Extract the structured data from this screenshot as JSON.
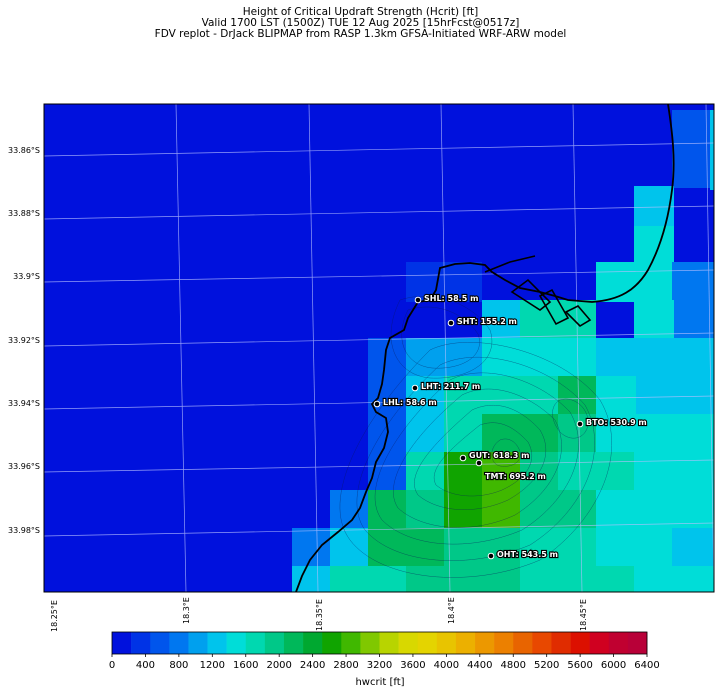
{
  "header": {
    "line1": "Height of Critical Updraft Strength (Hcrit) [ft]",
    "line2": "Valid 1700 LST (1500Z) TUE 12 Aug 2025 [15hrFcst@0517z]",
    "line3": "FDV replot - DrJack BLIPMAP from RASP 1.3km GFSA-Initiated WRF-ARW model"
  },
  "lat_labels": [
    "33.86°S",
    "33.88°S",
    "33.9°S",
    "33.92°S",
    "33.94°S",
    "33.96°S",
    "33.98°S"
  ],
  "lon_labels": [
    "18.25°E",
    "18.3°E",
    "18.35°E",
    "18.4°E",
    "18.45°E"
  ],
  "sites": [
    {
      "label": "SHL: 58.5 m"
    },
    {
      "label": "SHT: 155.2 m"
    },
    {
      "label": "LHT: 211.7 m"
    },
    {
      "label": "LHL: 58.6 m"
    },
    {
      "label": "BTO: 530.9 m"
    },
    {
      "label": "GUT: 618.3 m"
    },
    {
      "label": "TMT: 695.2 m"
    },
    {
      "label": "OHT: 543.5 m"
    }
  ],
  "colorbar": {
    "ticks": [
      "0",
      "400",
      "800",
      "1200",
      "1600",
      "2000",
      "2400",
      "2800",
      "3200",
      "3600",
      "4000",
      "4400",
      "4800",
      "5200",
      "5600",
      "6000",
      "6400"
    ],
    "label": "hwcrit [ft]",
    "colors": [
      "#0011dd",
      "#0033e6",
      "#0055ec",
      "#0077f0",
      "#00a0ee",
      "#00c4ec",
      "#00ddd8",
      "#00d8b0",
      "#00c888",
      "#00b85a",
      "#00a830",
      "#10a400",
      "#40b800",
      "#80c800",
      "#b8d400",
      "#d8d800",
      "#e4d400",
      "#e8c400",
      "#ecb000",
      "#ec9800",
      "#ec8000",
      "#e86400",
      "#e84800",
      "#e02c00",
      "#dc1000",
      "#d00020",
      "#c00030",
      "#b80038"
    ]
  }
}
